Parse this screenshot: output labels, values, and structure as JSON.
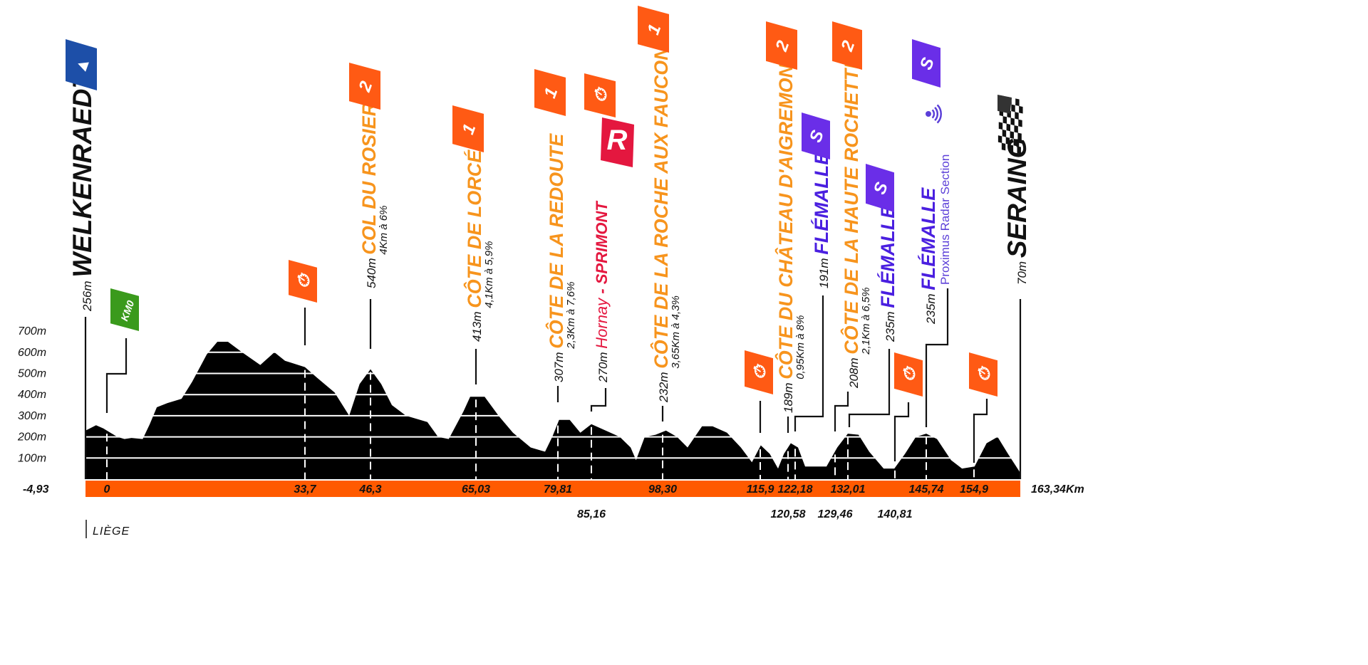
{
  "chart_data": {
    "type": "area",
    "title": "",
    "xlabel": "",
    "ylabel": "",
    "xlim": [
      -4.93,
      163.34
    ],
    "ylim": [
      0,
      700
    ],
    "y_ticks": [
      "700m",
      "600m",
      "500m",
      "400m",
      "300m",
      "200m",
      "100m"
    ],
    "y_tick_values": [
      700,
      600,
      500,
      400,
      300,
      200,
      100
    ],
    "start_km_label": "-4,93",
    "end_km_label": "163,34Km",
    "km_ticks": [
      {
        "km": 0,
        "label": "0",
        "row": 1
      },
      {
        "km": 33.7,
        "label": "33,7",
        "row": 1
      },
      {
        "km": 46.3,
        "label": "46,3",
        "row": 1
      },
      {
        "km": 65.03,
        "label": "65,03",
        "row": 1
      },
      {
        "km": 79.81,
        "label": "79,81",
        "row": 1
      },
      {
        "km": 85.16,
        "label": "85,16",
        "row": 2
      },
      {
        "km": 98.3,
        "label": "98,30",
        "row": 1
      },
      {
        "km": 115.9,
        "label": "115,9",
        "row": 1
      },
      {
        "km": 120.58,
        "label": "120,58",
        "row": 2
      },
      {
        "km": 122.18,
        "label": "122,18",
        "row": 1
      },
      {
        "km": 129.46,
        "label": "129,46",
        "row": 2
      },
      {
        "km": 132.01,
        "label": "132,01",
        "row": 1
      },
      {
        "km": 140.81,
        "label": "140,81",
        "row": 2
      },
      {
        "km": 145.74,
        "label": "145,74",
        "row": 1
      },
      {
        "km": 154.9,
        "label": "154,9",
        "row": 1
      }
    ],
    "profile": {
      "km": [
        -4.93,
        -2.5,
        -0.8,
        0.6,
        1.8,
        3.0,
        4.2,
        6.1,
        7.3,
        8.5,
        10.3,
        12.7,
        14.5,
        17.0,
        18.8,
        20.6,
        23.0,
        26.1,
        28.5,
        30.3,
        33.7,
        36.0,
        39.4,
        42.2,
        44.2,
        46.3,
        48.2,
        50.1,
        52.6,
        56.4,
        58.3,
        60.2,
        62.8,
        64.0,
        66.6,
        69.1,
        71.7,
        74.9,
        77.5,
        78.8,
        80.0,
        81.7,
        83.4,
        85.16,
        87.8,
        90.4,
        92.4,
        93.4,
        95.0,
        97.0,
        98.9,
        100.9,
        102.8,
        105.4,
        107.3,
        109.9,
        112.4,
        114.4,
        116.0,
        117.5,
        118.9,
        119.9,
        121.2,
        122.7,
        124.0,
        127.9,
        129.9,
        132.0,
        134.0,
        136.0,
        138.7,
        140.7,
        142.4,
        144.1,
        145.74,
        147.8,
        150.5,
        152.6,
        155.0,
        157.2,
        159.2,
        161.1,
        163.34
      ],
      "elevation": [
        230,
        255,
        240,
        220,
        200,
        190,
        195,
        190,
        260,
        340,
        360,
        380,
        460,
        590,
        650,
        650,
        600,
        540,
        600,
        560,
        530,
        480,
        410,
        300,
        450,
        520,
        450,
        350,
        300,
        270,
        200,
        190,
        320,
        390,
        390,
        300,
        220,
        150,
        130,
        200,
        280,
        280,
        220,
        260,
        230,
        200,
        150,
        90,
        200,
        210,
        230,
        200,
        150,
        250,
        250,
        220,
        150,
        80,
        160,
        120,
        50,
        120,
        170,
        150,
        60,
        60,
        150,
        215,
        210,
        130,
        50,
        50,
        120,
        200,
        215,
        190,
        90,
        50,
        60,
        170,
        200,
        120,
        30
      ]
    },
    "markers": [
      {
        "id": "start",
        "km": -4.93,
        "elev": "256m",
        "name": "WELKENRAEDT",
        "detail": "",
        "color": "#111111",
        "flag": "start-flag",
        "flag_color": "#1d4fa8"
      },
      {
        "id": "km0",
        "km": 0,
        "elev": "",
        "name": "",
        "detail": "",
        "color": "#111111",
        "flag": "km0-flag",
        "flag_color": "#3a9a1c",
        "flag_text": "KM0"
      },
      {
        "id": "sprint1",
        "km": 33.7,
        "elev": "",
        "name": "",
        "detail": "",
        "color": "#111111",
        "flag": "bonus-flag",
        "flag_color": "#ff5a14"
      },
      {
        "id": "rosier",
        "km": 46.3,
        "elev": "540m",
        "name": "COL DU ROSIER",
        "detail": "4Km à 6%",
        "color": "#f7941d",
        "flag": "climb-cat-2-flag",
        "flag_color": "#ff5a14",
        "flag_text": "2"
      },
      {
        "id": "lorce",
        "km": 65.03,
        "elev": "413m",
        "name": "CÔTE DE LORCÉ",
        "detail": "4,1Km à 5,9%",
        "color": "#f7941d",
        "flag": "climb-cat-1-flag",
        "flag_color": "#ff5a14",
        "flag_text": "1"
      },
      {
        "id": "redoute",
        "km": 79.81,
        "elev": "307m",
        "name": "CÔTE DE LA REDOUTE",
        "detail": "2,3Km à 7,6%",
        "color": "#f7941d",
        "flag": "climb-cat-1-flag",
        "flag_color": "#ff5a14",
        "flag_text": "1"
      },
      {
        "id": "sprimont",
        "km": 85.16,
        "elev": "270m",
        "name": "Hornay",
        "name2": " - SPRIMONT",
        "detail": "",
        "color": "#e4173f",
        "flag": "bonus-flag",
        "flag_color": "#ff5a14",
        "flag2": "red-sprint-flag",
        "flag2_text": "R"
      },
      {
        "id": "roche",
        "km": 98.3,
        "elev": "232m",
        "name": "CÔTE DE LA ROCHE AUX FAUCONS",
        "detail": "3,65Km à 4,3%",
        "color": "#f7941d",
        "flag": "climb-cat-1-flag",
        "flag_color": "#ff5a14",
        "flag_text": "1"
      },
      {
        "id": "sprint2",
        "km": 115.9,
        "elev": "",
        "name": "",
        "detail": "",
        "color": "#111111",
        "flag": "bonus-flag",
        "flag_color": "#ff5a14"
      },
      {
        "id": "aigremont",
        "km": 120.58,
        "elev": "189m",
        "name": "CÔTE DU CHÂTEAU D'AIGREMONT",
        "detail": "0,95Km à 8%",
        "color": "#f7941d",
        "flag": "climb-cat-2-flag",
        "flag_color": "#ff5a14",
        "flag_text": "2"
      },
      {
        "id": "flemalle1",
        "km": 122.18,
        "elev": "191m",
        "name": "FLÉMALLE",
        "detail": "",
        "color": "#4a1fe0",
        "flag": "segment-s-flag",
        "flag_color": "#6a2ee8",
        "flag_text": "S"
      },
      {
        "id": "rochette",
        "km": 129.46,
        "elev": "208m",
        "name": "CÔTE DE LA HAUTE ROCHETTE",
        "detail": "2,1Km à 6,5%",
        "color": "#f7941d",
        "flag": "climb-cat-2-flag",
        "flag_color": "#ff5a14",
        "flag_text": "2"
      },
      {
        "id": "flemalle2",
        "km": 132.01,
        "elev": "235m",
        "name": "FLÉMALLE",
        "detail": "",
        "color": "#4a1fe0",
        "flag": "segment-s-flag",
        "flag_color": "#6a2ee8",
        "flag_text": "S"
      },
      {
        "id": "sprint3",
        "km": 140.81,
        "elev": "",
        "name": "",
        "detail": "",
        "color": "#111111",
        "flag": "bonus-flag",
        "flag_color": "#ff5a14"
      },
      {
        "id": "flemalle3",
        "km": 145.74,
        "elev": "235m",
        "name": "FLÉMALLE",
        "detail": "Proximus Radar Section",
        "color": "#4a1fe0",
        "flag": "segment-s-flag",
        "flag_color": "#6a2ee8",
        "flag_text": "S"
      },
      {
        "id": "sprint4",
        "km": 154.9,
        "elev": "",
        "name": "",
        "detail": "",
        "color": "#111111",
        "flag": "bonus-flag",
        "flag_color": "#ff5a14"
      },
      {
        "id": "finish",
        "km": 163.34,
        "elev": "70m",
        "name": "SERAING",
        "detail": "",
        "color": "#111111",
        "flag": "finish-flag",
        "flag_color": "#222222"
      }
    ],
    "footer_label": "LIÈGE",
    "colors": {
      "profile": "#000000",
      "bar": "#ff5a00",
      "grid": "#ffffff"
    }
  }
}
